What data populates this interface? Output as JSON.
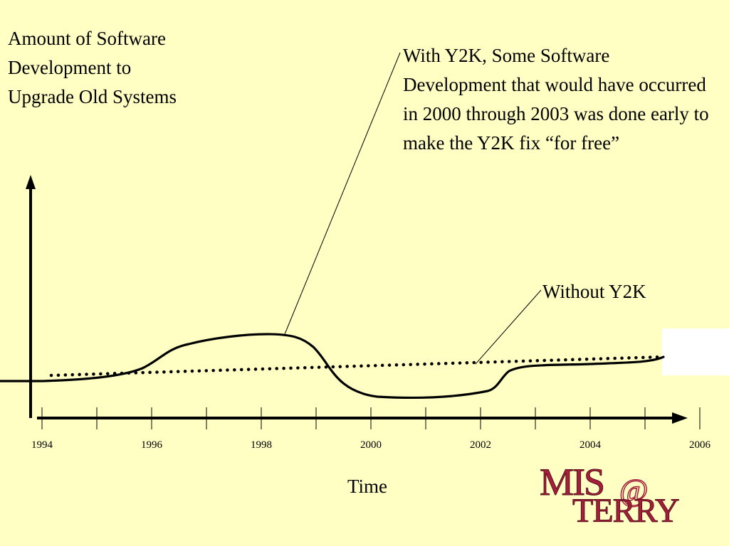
{
  "y_axis_label": "Amount of Software Development to Upgrade Old Systems",
  "x_axis_label": "Time",
  "callout_text": "With Y2K, Some Software Development that would have occurred in 2000 through 2003 was done early to make the Y2K fix “for free”",
  "baseline_label": "Without Y2K",
  "logo": {
    "line1": "MIS",
    "at": "@",
    "line2": "TERRY",
    "color": "#a31f3a"
  },
  "chart_data": {
    "type": "line",
    "x_ticks": [
      "1994",
      "1996",
      "1998",
      "2000",
      "2002",
      "2004",
      "2006"
    ],
    "series": [
      {
        "name": "With Y2K",
        "style": "solid"
      },
      {
        "name": "Without Y2K",
        "style": "dotted"
      }
    ]
  }
}
